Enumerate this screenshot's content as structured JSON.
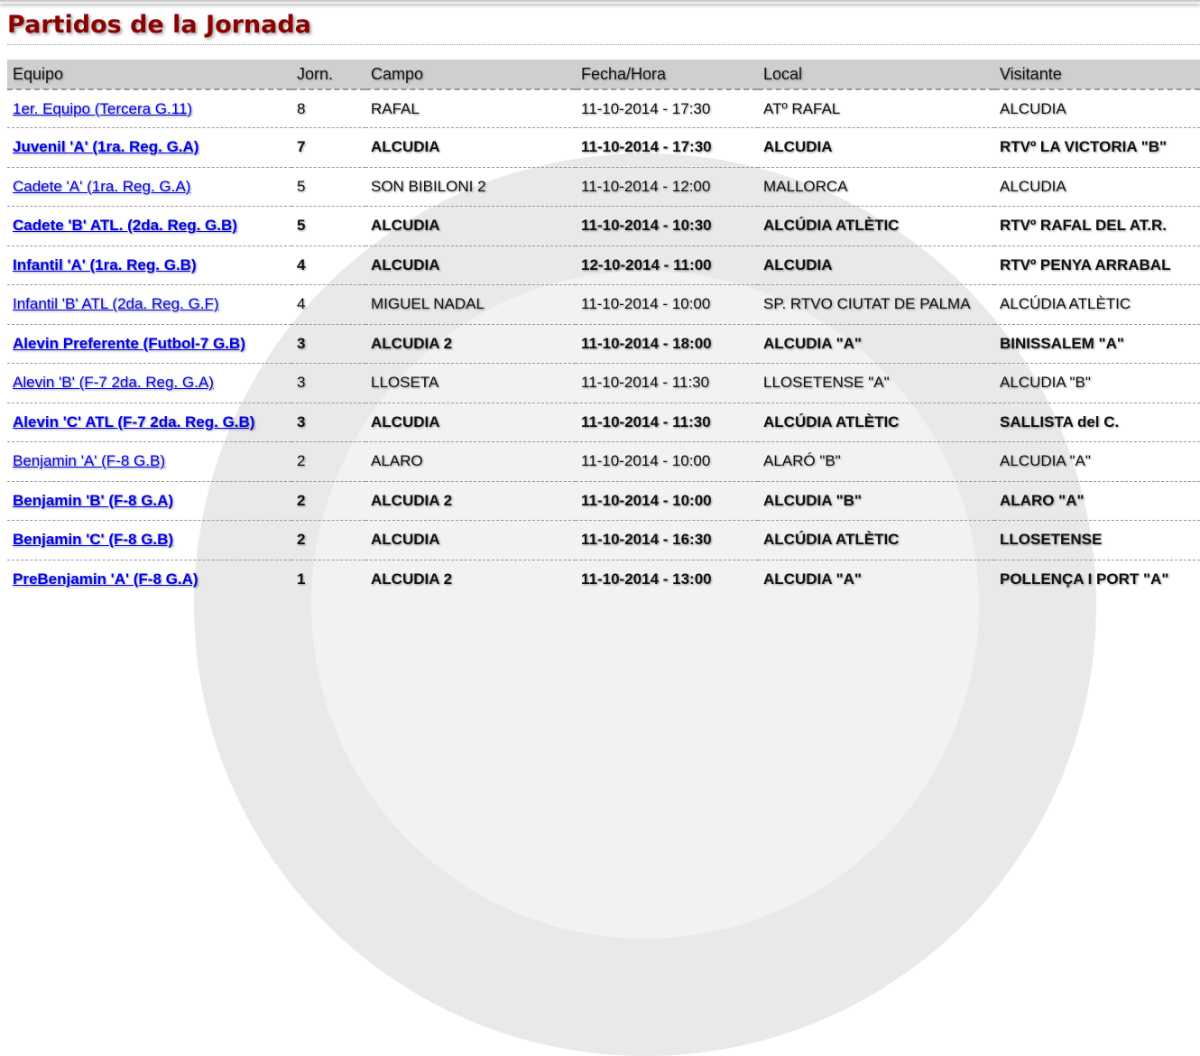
{
  "title": "Partidos de la Jornada",
  "columns": [
    "Equipo",
    "Jorn.",
    "Campo",
    "Fecha/Hora",
    "Local",
    "Visitante"
  ],
  "rows": [
    {
      "equipo": "1er. Equipo (Tercera G.11)",
      "jorn": "8",
      "campo": "RAFAL",
      "fecha": "11-10-2014 - 17:30",
      "local": "ATº RAFAL",
      "visitante": "ALCUDIA",
      "bold": false
    },
    {
      "equipo": "Juvenil 'A' (1ra. Reg. G.A)",
      "jorn": "7",
      "campo": "ALCUDIA",
      "fecha": "11-10-2014 - 17:30",
      "local": "ALCUDIA",
      "visitante": "RTVº LA VICTORIA \"B\"",
      "bold": true
    },
    {
      "equipo": "Cadete 'A' (1ra. Reg. G.A)",
      "jorn": "5",
      "campo": "SON BIBILONI 2",
      "fecha": "11-10-2014 - 12:00",
      "local": "MALLORCA",
      "visitante": "ALCUDIA",
      "bold": false
    },
    {
      "equipo": "Cadete 'B' ATL. (2da. Reg. G.B)",
      "jorn": "5",
      "campo": "ALCUDIA",
      "fecha": "11-10-2014 - 10:30",
      "local": "ALCÚDIA ATLÈTIC",
      "visitante": "RTVº RAFAL DEL AT.R.",
      "bold": true
    },
    {
      "equipo": "Infantil 'A' (1ra. Reg. G.B)",
      "jorn": "4",
      "campo": "ALCUDIA",
      "fecha": "12-10-2014 - 11:00",
      "local": "ALCUDIA",
      "visitante": "RTVº PENYA ARRABAL",
      "bold": true
    },
    {
      "equipo": "Infantil 'B' ATL (2da. Reg. G.F)",
      "jorn": "4",
      "campo": "MIGUEL NADAL",
      "fecha": "11-10-2014 - 10:00",
      "local": "SP. RTVO CIUTAT DE PALMA",
      "visitante": "ALCÚDIA ATLÈTIC",
      "bold": false
    },
    {
      "equipo": "Alevin Preferente (Futbol-7 G.B)",
      "jorn": "3",
      "campo": "ALCUDIA 2",
      "fecha": "11-10-2014 - 18:00",
      "local": "ALCUDIA \"A\"",
      "visitante": "BINISSALEM \"A\"",
      "bold": true
    },
    {
      "equipo": "Alevin 'B' (F-7 2da. Reg. G.A)",
      "jorn": "3",
      "campo": "LLOSETA",
      "fecha": "11-10-2014 - 11:30",
      "local": "LLOSETENSE \"A\"",
      "visitante": "ALCUDIA \"B\"",
      "bold": false
    },
    {
      "equipo": "Alevin 'C' ATL (F-7 2da. Reg. G.B)",
      "jorn": "3",
      "campo": "ALCUDIA",
      "fecha": "11-10-2014 - 11:30",
      "local": "ALCÚDIA ATLÈTIC",
      "visitante": "SALLISTA del C.",
      "bold": true
    },
    {
      "equipo": "Benjamin 'A' (F-8 G.B)",
      "jorn": "2",
      "campo": "ALARO",
      "fecha": "11-10-2014 - 10:00",
      "local": "ALARÓ \"B\"",
      "visitante": "ALCUDIA \"A\"",
      "bold": false
    },
    {
      "equipo": "Benjamin 'B' (F-8 G.A)",
      "jorn": "2",
      "campo": "ALCUDIA 2",
      "fecha": "11-10-2014 - 10:00",
      "local": "ALCUDIA \"B\"",
      "visitante": "ALARO \"A\"",
      "bold": true
    },
    {
      "equipo": "Benjamin 'C' (F-8 G.B)",
      "jorn": "2",
      "campo": "ALCUDIA",
      "fecha": "11-10-2014 - 16:30",
      "local": "ALCÚDIA ATLÈTIC",
      "visitante": "LLOSETENSE",
      "bold": true
    },
    {
      "equipo": "PreBenjamin 'A' (F-8 G.A)",
      "jorn": "1",
      "campo": "ALCUDIA 2",
      "fecha": "11-10-2014 - 13:00",
      "local": "ALCUDIA \"A\"",
      "visitante": "POLLENÇA I PORT \"A\"",
      "bold": true
    }
  ],
  "colors": {
    "title": "#8b0000",
    "link": "#0000ee",
    "header_bg": "#cfcfcf"
  }
}
